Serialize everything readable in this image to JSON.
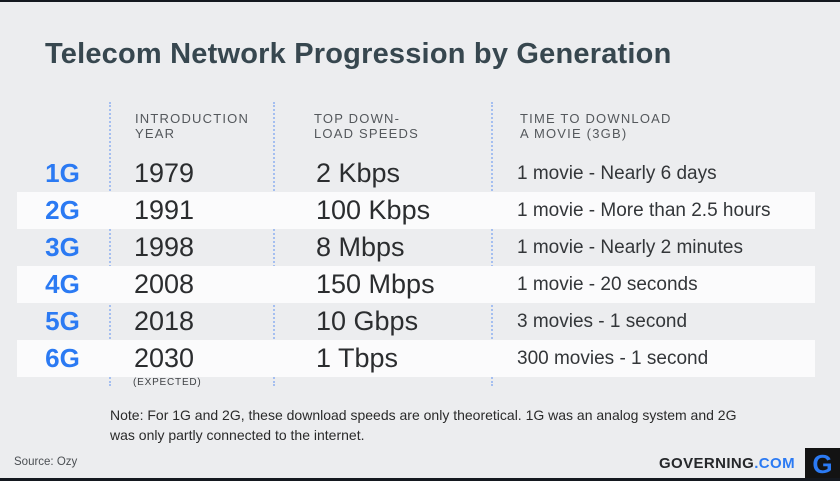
{
  "page": {
    "title": "Telecom Network Progression by Generation"
  },
  "table": {
    "headers": [
      {
        "line1": "INTRODUCTION",
        "line2": "YEAR"
      },
      {
        "line1": "TOP DOWN-",
        "line2": "LOAD SPEEDS"
      },
      {
        "line1": "TIME TO DOWNLOAD",
        "line2": "A MOVIE (3GB)"
      }
    ],
    "rows": [
      {
        "gen": "1G",
        "year": "1979",
        "speed": "2 Kbps",
        "movie": "1 movie - Nearly 6 days"
      },
      {
        "gen": "2G",
        "year": "1991",
        "speed": "100 Kbps",
        "movie": "1 movie - More than 2.5 hours"
      },
      {
        "gen": "3G",
        "year": "1998",
        "speed": "8 Mbps",
        "movie": "1 movie - Nearly 2 minutes"
      },
      {
        "gen": "4G",
        "year": "2008",
        "speed": "150 Mbps",
        "movie": "1 movie - 20 seconds"
      },
      {
        "gen": "5G",
        "year": "2018",
        "speed": "10 Gbps",
        "movie": "3 movies - 1 second"
      },
      {
        "gen": "6G",
        "year": "2030",
        "speed": "1 Tbps",
        "movie": "300 movies - 1 second",
        "year_note": "(EXPECTED)"
      }
    ]
  },
  "note": {
    "line1": "Note: For 1G and 2G, these download speeds are only theoretical. 1G was an analog system and 2G",
    "line2": "was only partly connected to the internet."
  },
  "footer": {
    "source": "Source: Ozy",
    "brand_name": "GOVERNING",
    "brand_tld": ".COM",
    "logo_letter": "G"
  },
  "colors": {
    "background": "#ECEDEF",
    "highlight_row": "#FBFBFC",
    "accent_blue": "#2B7AF3",
    "title_color": "#37474F",
    "header_gray": "#54585C",
    "separator_dotted": "#A5BFF0",
    "dark_border": "#14181F",
    "logo_background": "#131313"
  },
  "chart_data": {
    "type": "table",
    "title": "Telecom Network Progression by Generation",
    "columns": [
      "Generation",
      "Introduction Year",
      "Top Download Speeds",
      "Time to Download a Movie (3GB)"
    ],
    "rows": [
      [
        "1G",
        "1979",
        "2 Kbps",
        "1 movie - Nearly 6 days"
      ],
      [
        "2G",
        "1991",
        "100 Kbps",
        "1 movie - More than 2.5 hours"
      ],
      [
        "3G",
        "1998",
        "8 Mbps",
        "1 movie - Nearly 2 minutes"
      ],
      [
        "4G",
        "2008",
        "150 Mbps",
        "1 movie - 20 seconds"
      ],
      [
        "5G",
        "2018",
        "10 Gbps",
        "3 movies - 1 second"
      ],
      [
        "6G",
        "2030 (EXPECTED)",
        "1 Tbps",
        "300 movies - 1 second"
      ]
    ],
    "annotations": [
      "Note: For 1G and 2G, these download speeds are only theoretical. 1G was an analog system and 2G was only partly connected to the internet.",
      "Source: Ozy"
    ]
  }
}
